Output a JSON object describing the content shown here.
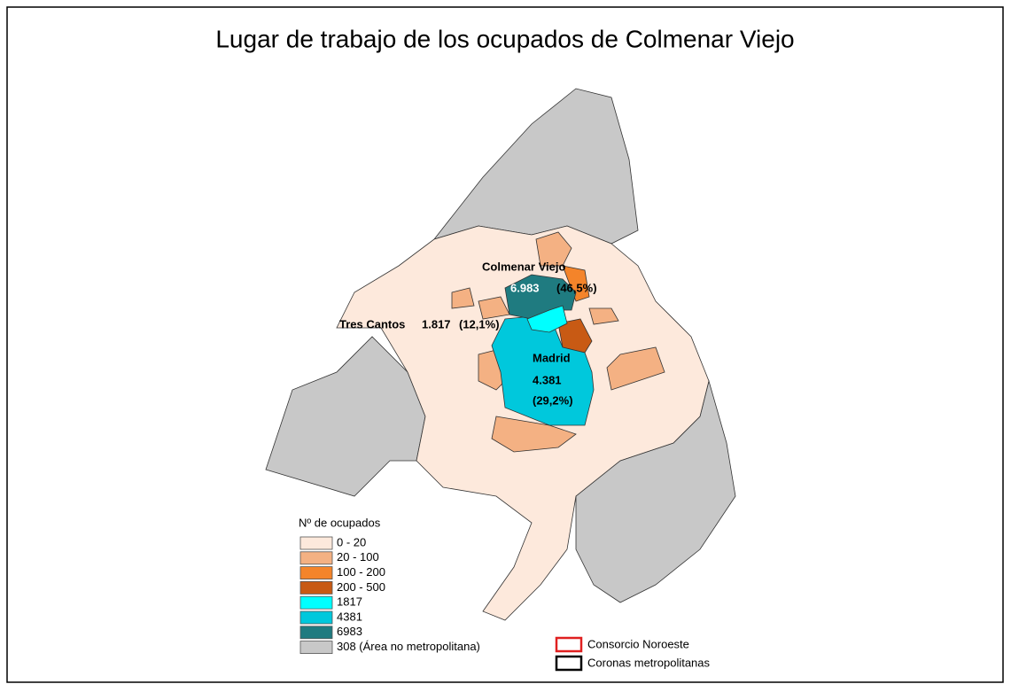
{
  "title": "Lugar de trabajo de los ocupados de Colmenar Viejo",
  "map_labels": {
    "colmenar": {
      "name": "Colmenar Viejo",
      "value": "6.983",
      "share": "(46,5%)"
    },
    "tres_cantos": {
      "name": "Tres Cantos",
      "value": "1.817",
      "share": "(12,1%)"
    },
    "madrid": {
      "name": "Madrid",
      "value": "4.381",
      "share": "(29,2%)"
    }
  },
  "legend": {
    "title": "Nº de ocupados",
    "items": [
      {
        "label": "0 - 20",
        "color": "#fde9dc"
      },
      {
        "label": "20 - 100",
        "color": "#f4b183"
      },
      {
        "label": "100 - 200",
        "color": "#f4842a"
      },
      {
        "label": "200 - 500",
        "color": "#c85a14"
      },
      {
        "label": "1817",
        "color": "#00ffff"
      },
      {
        "label": "4381",
        "color": "#00c8dc"
      },
      {
        "label": "6983",
        "color": "#1f7b80"
      },
      {
        "label": "308 (Área no metropolitana)",
        "color": "#c8c8c8"
      }
    ],
    "outlines": [
      {
        "label": "Consorcio Noroeste",
        "color": "#e02020"
      },
      {
        "label": "Coronas metropolitanas",
        "color": "#000000"
      }
    ]
  }
}
